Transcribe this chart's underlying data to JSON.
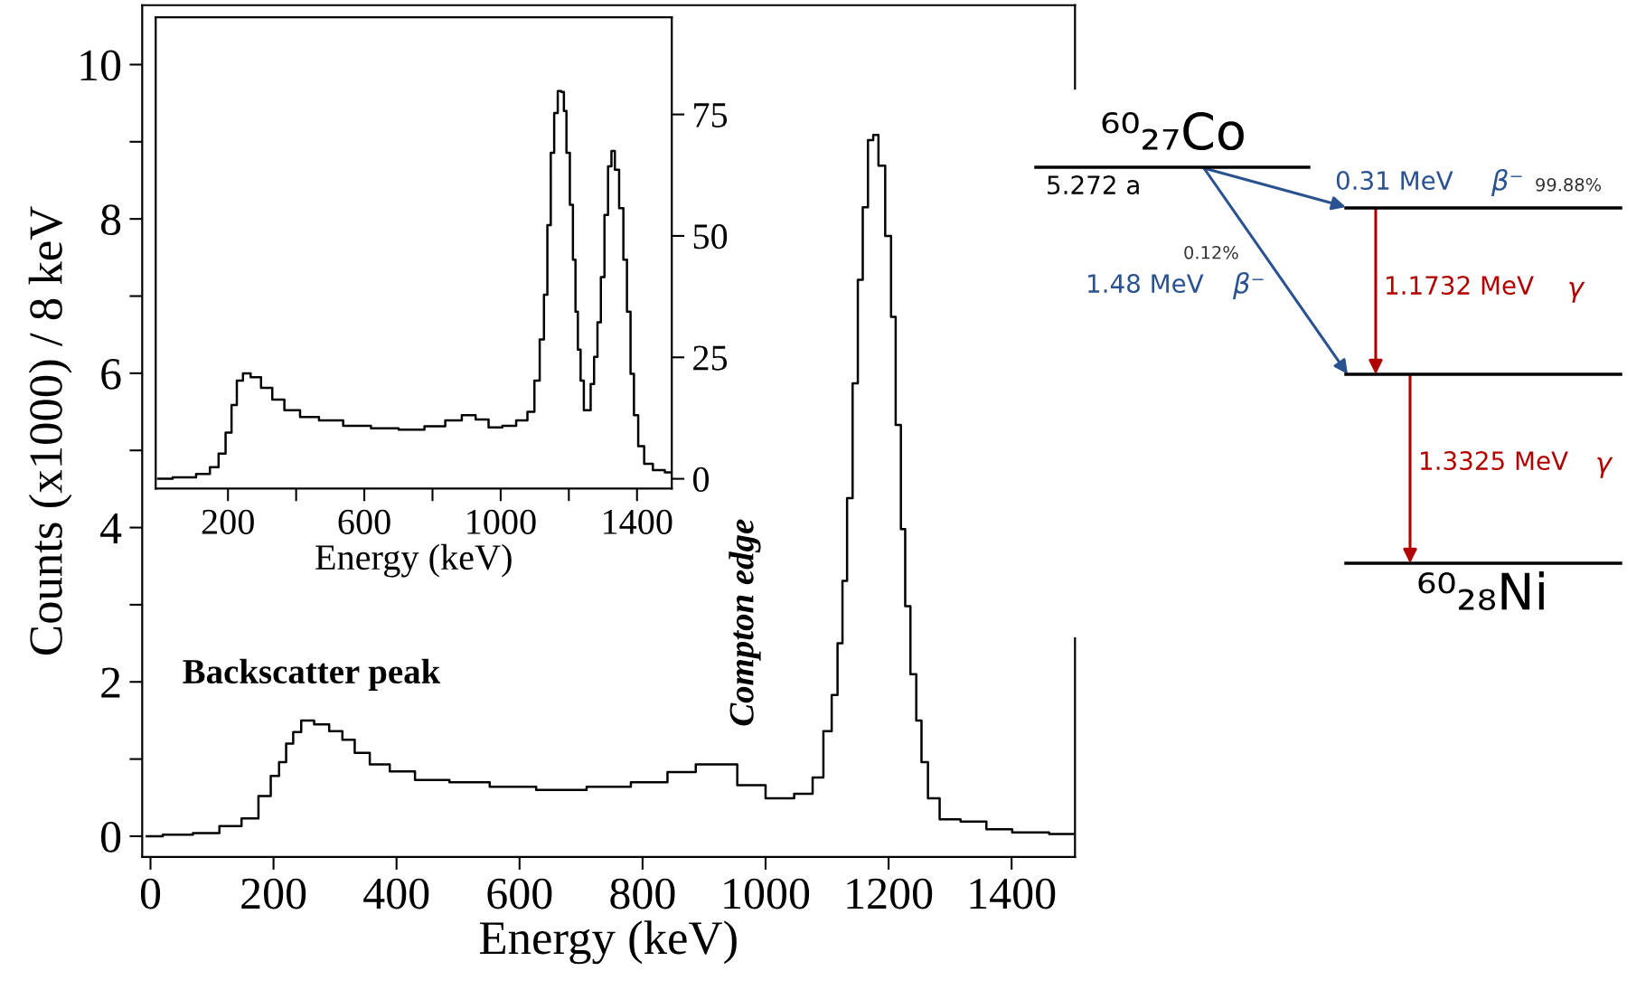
{
  "chart_data": [
    {
      "type": "step",
      "xlabel": "Energy (keV)",
      "ylabel": "Counts (x1000) / 8 keV",
      "xlim": [
        -13.5,
        1503
      ],
      "ylim": [
        -0.27,
        10.77
      ],
      "xticks": [
        0,
        200,
        400,
        600,
        800,
        1000,
        1200,
        1400
      ],
      "yticks": [
        0,
        {
          "value": 1,
          "label": null
        },
        2,
        {
          "value": 3,
          "label": null
        },
        4,
        {
          "value": 5,
          "label": null
        },
        6,
        {
          "value": 7,
          "label": null
        },
        8,
        {
          "value": 9,
          "label": null
        },
        10
      ],
      "series": [
        {
          "color": "#000000",
          "x": [
            -6,
            46,
            92,
            132,
            164,
            187,
            204,
            214,
            227,
            237,
            253,
            279,
            302,
            322,
            342,
            371,
            407,
            453,
            519,
            584,
            670,
            748,
            814,
            867,
            906,
            933,
            975,
            1025,
            1068,
            1085,
            1103,
            1112,
            1122,
            1128,
            1137,
            1146,
            1154,
            1162,
            1171,
            1179,
            1188,
            1201,
            1207,
            1216,
            1224,
            1230,
            1241,
            1249,
            1258,
            1270,
            1296,
            1338,
            1380,
            1422,
            1500
          ],
          "values": [
            0,
            0.02,
            0.04,
            0.13,
            0.23,
            0.52,
            0.78,
            0.96,
            1.2,
            1.35,
            1.5,
            1.45,
            1.36,
            1.25,
            1.08,
            0.93,
            0.84,
            0.73,
            0.7,
            0.64,
            0.6,
            0.64,
            0.7,
            0.83,
            0.93,
            0.93,
            0.66,
            0.49,
            0.55,
            0.76,
            1.36,
            1.83,
            2.5,
            3.31,
            4.38,
            5.87,
            7.21,
            8.15,
            9.02,
            9.09,
            8.69,
            7.78,
            6.73,
            5.33,
            3.98,
            2.98,
            2.1,
            1.5,
            0.96,
            0.49,
            0.22,
            0.19,
            0.09,
            0.05,
            0.03
          ]
        }
      ],
      "annotations": [
        "Backscatter peak",
        "Compton edge"
      ]
    },
    {
      "type": "step",
      "xlabel": "Energy (keV)",
      "xlim": [
        -12,
        1502
      ],
      "ylim": [
        -2,
        95
      ],
      "xticks": [
        200,
        {
          "value": 400,
          "label": null
        },
        600,
        {
          "value": 800,
          "label": null
        },
        1000,
        {
          "value": 1200,
          "label": null
        },
        1400
      ],
      "yticks": [
        0,
        25,
        50,
        75
      ],
      "series": [
        {
          "color": "#000000",
          "x": [
            -5,
            81,
            132,
            162,
            183,
            203,
            218,
            234,
            254,
            279,
            315,
            345,
            386,
            437,
            497,
            579,
            660,
            741,
            812,
            863,
            909,
            944,
            985,
            1025,
            1066,
            1091,
            1107,
            1122,
            1132,
            1142,
            1152,
            1162,
            1173,
            1183,
            1188,
            1198,
            1208,
            1216,
            1223,
            1230,
            1239,
            1249,
            1259,
            1269,
            1279,
            1289,
            1299,
            1310,
            1320,
            1330,
            1340,
            1355,
            1365,
            1376,
            1386,
            1396,
            1411,
            1431,
            1462,
            1501
          ],
          "values": [
            0,
            0.3,
            1,
            2.4,
            5.2,
            9.5,
            15.2,
            20.2,
            21.7,
            20.9,
            18.7,
            16.3,
            14.1,
            12.7,
            12,
            10.9,
            10.4,
            10.1,
            10.8,
            12,
            13.1,
            12.2,
            10.6,
            10.9,
            12,
            13.8,
            20.2,
            28.7,
            37.9,
            52.2,
            67.1,
            75.3,
            79.8,
            79.6,
            75.7,
            67.1,
            56.4,
            45.1,
            34.4,
            26.6,
            20.2,
            14.1,
            14.1,
            19.5,
            25.1,
            32.2,
            41.5,
            54.3,
            64.3,
            67.5,
            63.6,
            55.7,
            45.1,
            34.4,
            21.6,
            13.1,
            6.7,
            3.1,
            1.8,
            1.3
          ]
        }
      ]
    },
    {
      "type": "other",
      "annotations": [
        "⁶⁰₂₇Co",
        "5.272 a",
        "0.31 MeV",
        "β⁻",
        "99.88%",
        "0.12%",
        "1.48 MeV",
        "β⁻",
        "1.1732 MeV",
        "γ",
        "1.3325 MeV",
        "γ",
        "⁶⁰₂₈Ni"
      ]
    }
  ]
}
